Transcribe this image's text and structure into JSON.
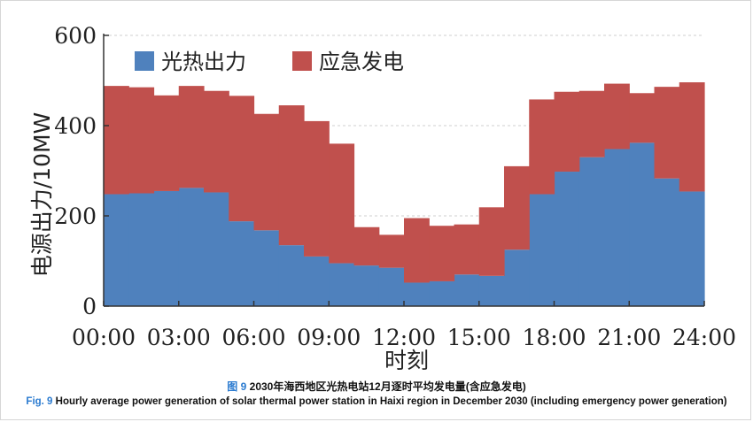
{
  "chart_data": {
    "type": "bar",
    "stacked": true,
    "x_labels": [
      "00:00",
      "03:00",
      "06:00",
      "09:00",
      "12:00",
      "15:00",
      "18:00",
      "21:00",
      "24:00"
    ],
    "hours": [
      0,
      1,
      2,
      3,
      4,
      5,
      6,
      7,
      8,
      9,
      10,
      11,
      12,
      13,
      14,
      15,
      16,
      17,
      18,
      19,
      20,
      21,
      22,
      23
    ],
    "series": [
      {
        "name": "光热出力",
        "color": "#4f81bd",
        "values": [
          248,
          250,
          255,
          262,
          252,
          188,
          168,
          135,
          110,
          95,
          90,
          85,
          52,
          55,
          70,
          67,
          125,
          248,
          298,
          330,
          348,
          362,
          283,
          254
        ]
      },
      {
        "name": "应急发电",
        "color": "#c0504d",
        "values": [
          240,
          235,
          212,
          226,
          225,
          278,
          258,
          310,
          300,
          265,
          85,
          73,
          143,
          123,
          111,
          152,
          185,
          210,
          177,
          147,
          145,
          110,
          203,
          242
        ]
      }
    ],
    "ylim": [
      0,
      600
    ],
    "yticks": [
      0,
      200,
      400,
      600
    ],
    "ylabel": "电源出力/10MW",
    "xlabel": "时刻",
    "legend_position": "top-left",
    "grid": true
  },
  "caption": {
    "zh_fig": "图 9",
    "zh_text": "2030年海西地区光热电站12月逐时平均发电量(含应急发电)",
    "en_fig": "Fig. 9",
    "en_text": "Hourly average power generation of solar thermal power station in Haixi region in December 2030 (including emergency power generation)"
  }
}
